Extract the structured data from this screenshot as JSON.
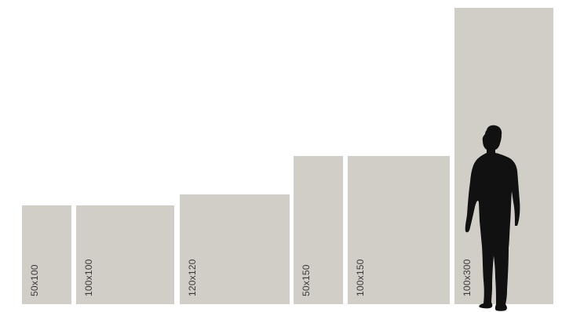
{
  "colors": {
    "panel": "#d1cdc7",
    "label": "#3a3a3a",
    "silhouette": "#111111",
    "background": "#ffffff"
  },
  "panels": [
    {
      "label": "50x100",
      "width_cm": 50,
      "height_cm": 100
    },
    {
      "label": "100x100",
      "width_cm": 100,
      "height_cm": 100
    },
    {
      "label": "120x120",
      "width_cm": 120,
      "height_cm": 120
    },
    {
      "label": "50x150",
      "width_cm": 50,
      "height_cm": 150
    },
    {
      "label": "100x150",
      "width_cm": 100,
      "height_cm": 150
    },
    {
      "label": "100x300",
      "width_cm": 100,
      "height_cm": 300
    }
  ],
  "figure": {
    "icon": "person-silhouette-icon"
  }
}
